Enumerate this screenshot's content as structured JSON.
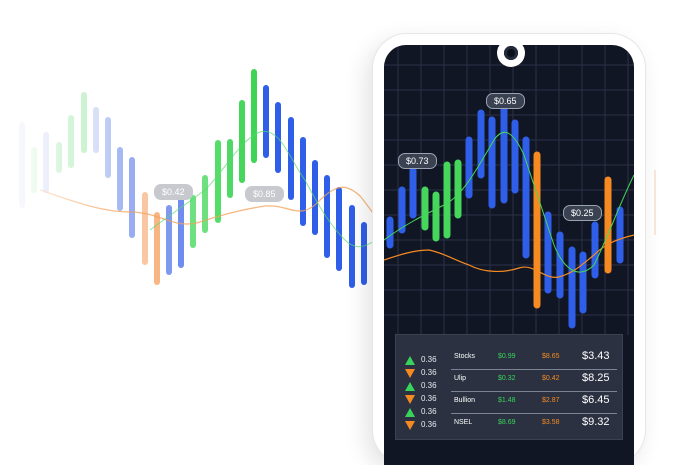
{
  "colors": {
    "green": "#37d35a",
    "blue": "#2f5ee8",
    "orange": "#f58a22",
    "screen": "#111624"
  },
  "price_labels": {
    "ghost_1": "$0.42",
    "ghost_2": "$0.85",
    "screen_1": "$0.73",
    "screen_2": "$0.65",
    "screen_3": "$0.25"
  },
  "market_table": {
    "rows": [
      {
        "name": "Stocks",
        "v1": "$0.99",
        "v2": "$8.65",
        "v3": "$3.43"
      },
      {
        "name": "Ulip",
        "v1": "$0.32",
        "v2": "$0.42",
        "v3": "$8.25"
      },
      {
        "name": "Bullion",
        "v1": "$1.48",
        "v2": "$2.87",
        "v3": "$6.45"
      },
      {
        "name": "NSEL",
        "v1": "$8.69",
        "v2": "$3.58",
        "v3": "$9.32"
      }
    ],
    "indicators": [
      {
        "dir": "up",
        "pct": "0.36"
      },
      {
        "dir": "down",
        "pct": "0.36"
      },
      {
        "dir": "up",
        "pct": "0.36"
      },
      {
        "dir": "down",
        "pct": "0.36"
      },
      {
        "dir": "up",
        "pct": "0.36"
      },
      {
        "dir": "down",
        "pct": "0.36"
      }
    ]
  }
}
